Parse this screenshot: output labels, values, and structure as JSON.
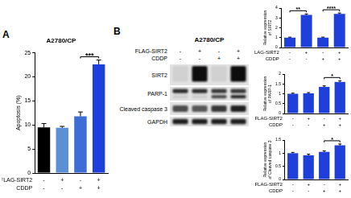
{
  "panel_labels": [
    "A",
    "B"
  ],
  "chart_data": [
    {
      "type": "bar",
      "title": "A2780/CP",
      "ylabel": "Apoptosis (%)",
      "categories": [
        null,
        null,
        null,
        null
      ],
      "values": [
        9.5,
        9.4,
        11.8,
        22.6
      ],
      "errors": [
        0.8,
        0.3,
        0.9,
        0.9
      ],
      "colors": [
        "#000000",
        "#5b8fd6",
        "#3d6ed8",
        "#1f3fdb"
      ],
      "ylim": [
        0,
        25
      ],
      "yticks": [
        0,
        5,
        10,
        15,
        20,
        25
      ],
      "grid": false,
      "tick_labels": "y",
      "condition_rows": [
        {
          "label": "FLAG-SIRT2",
          "values": [
            "-",
            "+",
            "-",
            "+"
          ]
        },
        {
          "label": "CDDP",
          "values": [
            "-",
            "-",
            "+",
            "+"
          ]
        }
      ],
      "annotations": [
        {
          "from": 2,
          "to": 3,
          "label": "***"
        }
      ]
    },
    {
      "type": "bar",
      "ylabel": "Relative expression of SIRT2",
      "categories": [
        null,
        null,
        null,
        null
      ],
      "values": [
        1,
        3.3,
        1,
        3.4
      ],
      "errors": [
        0.05,
        0.1,
        0.05,
        0.1
      ],
      "color": "#1f3fdb",
      "ylim": [
        0,
        4
      ],
      "yticks": [
        0,
        1,
        2,
        3,
        4
      ],
      "grid": false,
      "tick_labels": "y",
      "condition_rows": [
        {
          "label": "FLAG-SIRT2",
          "values": [
            "-",
            "+",
            "-",
            "+"
          ]
        },
        {
          "label": "CDDP",
          "values": [
            "-",
            "-",
            "+",
            "+"
          ]
        }
      ],
      "annotations": [
        {
          "from": 0,
          "to": 1,
          "label": "**"
        },
        {
          "from": 2,
          "to": 3,
          "label": "****"
        }
      ]
    },
    {
      "type": "bar",
      "ylabel": "Relative expression of PARP-1",
      "categories": [
        null,
        null,
        null,
        null
      ],
      "values": [
        1,
        1.02,
        1.35,
        1.6
      ],
      "errors": [
        0.03,
        0.04,
        0.05,
        0.06
      ],
      "color": "#1f3fdb",
      "ylim": [
        0,
        2
      ],
      "yticks": [
        0,
        0.5,
        1,
        1.5,
        2
      ],
      "grid": false,
      "tick_labels": "y",
      "condition_rows": [
        {
          "label": "FLAG-SIRT2",
          "values": [
            "-",
            "+",
            "-",
            "+"
          ]
        },
        {
          "label": "CDDP",
          "values": [
            "-",
            "-",
            "+",
            "+"
          ]
        }
      ],
      "annotations": [
        {
          "from": 2,
          "to": 3,
          "label": "*"
        }
      ]
    },
    {
      "type": "bar",
      "ylabel": "Relative expression of Cleaved caspase 3",
      "categories": [
        null,
        null,
        null,
        null
      ],
      "values": [
        1,
        0.92,
        1.05,
        1.3
      ],
      "errors": [
        0.03,
        0.04,
        0.04,
        0.05
      ],
      "color": "#1f3fdb",
      "ylim": [
        0,
        1.5
      ],
      "yticks": [
        0,
        0.5,
        1,
        1.5
      ],
      "grid": false,
      "tick_labels": "y",
      "condition_rows": [
        {
          "label": "FLAG-SIRT2",
          "values": [
            "-",
            "+",
            "-",
            "+"
          ]
        },
        {
          "label": "CDDP",
          "values": [
            "-",
            "-",
            "+",
            "+"
          ]
        }
      ],
      "annotations": [
        {
          "from": 2,
          "to": 3,
          "label": "*"
        }
      ]
    }
  ],
  "blot": {
    "title": "A2780/CP",
    "condition_rows": [
      {
        "label": "FLAG-SIRT2",
        "values": [
          "-",
          "+",
          "-",
          "+"
        ]
      },
      {
        "label": "CDDP",
        "values": [
          "-",
          "-",
          "+",
          "+"
        ]
      }
    ],
    "rows": [
      "SIRT2",
      "PARP-1",
      "Cleaved caspase 3",
      "GAPDH"
    ]
  }
}
